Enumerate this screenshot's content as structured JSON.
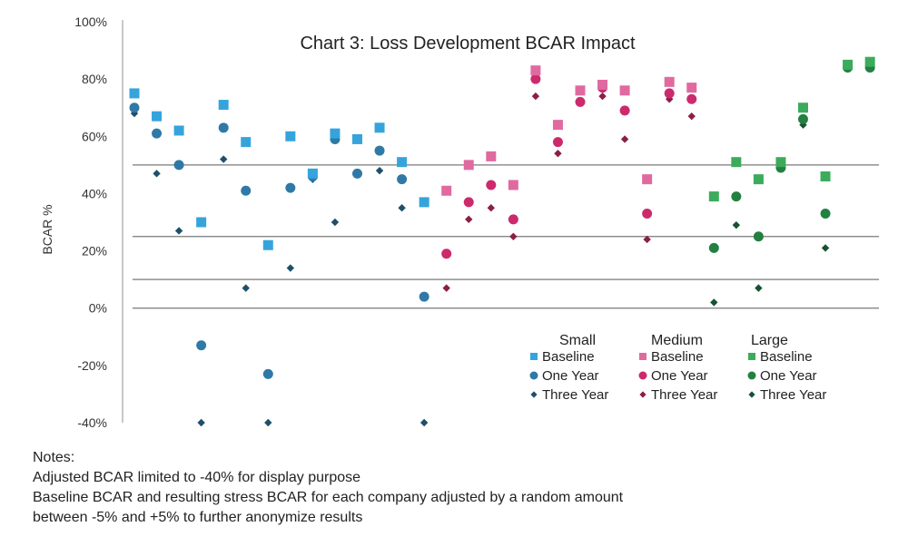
{
  "chart_data": {
    "type": "scatter",
    "title": "Chart 3: Loss Development BCAR Impact",
    "ylabel": "BCAR %",
    "xlabel": "",
    "ylim": [
      -40,
      100
    ],
    "yticks": [
      -40,
      -20,
      0,
      20,
      40,
      60,
      80,
      100
    ],
    "ytick_labels": [
      "-40%",
      "-20%",
      "0%",
      "20%",
      "40%",
      "60%",
      "80%",
      "100%"
    ],
    "reference_lines": [
      0,
      10,
      25,
      50
    ],
    "legend_placement": "bottom-right",
    "groups": [
      {
        "name": "Small",
        "colors": {
          "Baseline": "#35a4dc",
          "One Year": "#2f79a6",
          "Three Year": "#1e4f6b"
        },
        "companies": [
          {
            "Baseline": 75,
            "One Year": 70,
            "Three Year": 68
          },
          {
            "Baseline": 67,
            "One Year": 61,
            "Three Year": 47
          },
          {
            "Baseline": 62,
            "One Year": 50,
            "Three Year": 27
          },
          {
            "Baseline": 30,
            "One Year": -13,
            "Three Year": -40
          },
          {
            "Baseline": 71,
            "One Year": 63,
            "Three Year": 52
          },
          {
            "Baseline": 58,
            "One Year": 41,
            "Three Year": 7
          },
          {
            "Baseline": 22,
            "One Year": -23,
            "Three Year": -40
          },
          {
            "Baseline": 60,
            "One Year": 42,
            "Three Year": 14
          },
          {
            "Baseline": 47,
            "One Year": 46,
            "Three Year": 45
          },
          {
            "Baseline": 61,
            "One Year": 59,
            "Three Year": 30
          },
          {
            "Baseline": 59,
            "One Year": 47,
            "Three Year": 47
          },
          {
            "Baseline": 63,
            "One Year": 55,
            "Three Year": 48
          },
          {
            "Baseline": 51,
            "One Year": 45,
            "Three Year": 35
          },
          {
            "Baseline": 37,
            "One Year": 4,
            "Three Year": -40
          }
        ]
      },
      {
        "name": "Medium",
        "colors": {
          "Baseline": "#e06aa0",
          "One Year": "#cc2a6c",
          "Three Year": "#8a1f47"
        },
        "companies": [
          {
            "Baseline": 41,
            "One Year": 19,
            "Three Year": 7
          },
          {
            "Baseline": 50,
            "One Year": 37,
            "Three Year": 31
          },
          {
            "Baseline": 53,
            "One Year": 43,
            "Three Year": 35
          },
          {
            "Baseline": 43,
            "One Year": 31,
            "Three Year": 25
          },
          {
            "Baseline": 83,
            "One Year": 80,
            "Three Year": 74
          },
          {
            "Baseline": 64,
            "One Year": 58,
            "Three Year": 54
          },
          {
            "Baseline": 76,
            "One Year": 72,
            "Three Year": 72
          },
          {
            "Baseline": 78,
            "One Year": 77,
            "Three Year": 74
          },
          {
            "Baseline": 76,
            "One Year": 69,
            "Three Year": 59
          },
          {
            "Baseline": 45,
            "One Year": 33,
            "Three Year": 24
          },
          {
            "Baseline": 79,
            "One Year": 75,
            "Three Year": 73
          },
          {
            "Baseline": 77,
            "One Year": 73,
            "Three Year": 67
          }
        ]
      },
      {
        "name": "Large",
        "colors": {
          "Baseline": "#3cab5c",
          "One Year": "#238041",
          "Three Year": "#165231"
        },
        "companies": [
          {
            "Baseline": 39,
            "One Year": 21,
            "Three Year": 2
          },
          {
            "Baseline": 51,
            "One Year": 39,
            "Three Year": 29
          },
          {
            "Baseline": 45,
            "One Year": 25,
            "Three Year": 7
          },
          {
            "Baseline": 51,
            "One Year": 49,
            "Three Year": 51
          },
          {
            "Baseline": 70,
            "One Year": 66,
            "Three Year": 64
          },
          {
            "Baseline": 46,
            "One Year": 33,
            "Three Year": 21
          },
          {
            "Baseline": 85,
            "One Year": 84,
            "Three Year": 84
          },
          {
            "Baseline": 86,
            "One Year": 84,
            "Three Year": 84
          }
        ]
      }
    ],
    "legend": {
      "series_labels": [
        "Baseline",
        "One Year",
        "Three Year"
      ]
    }
  },
  "notes": {
    "heading": "Notes:",
    "lines": [
      "Adjusted BCAR limited to -40% for display purpose",
      "Baseline BCAR and resulting stress BCAR for each company adjusted by a random amount",
      "between -5% and +5% to further anonymize results"
    ]
  }
}
